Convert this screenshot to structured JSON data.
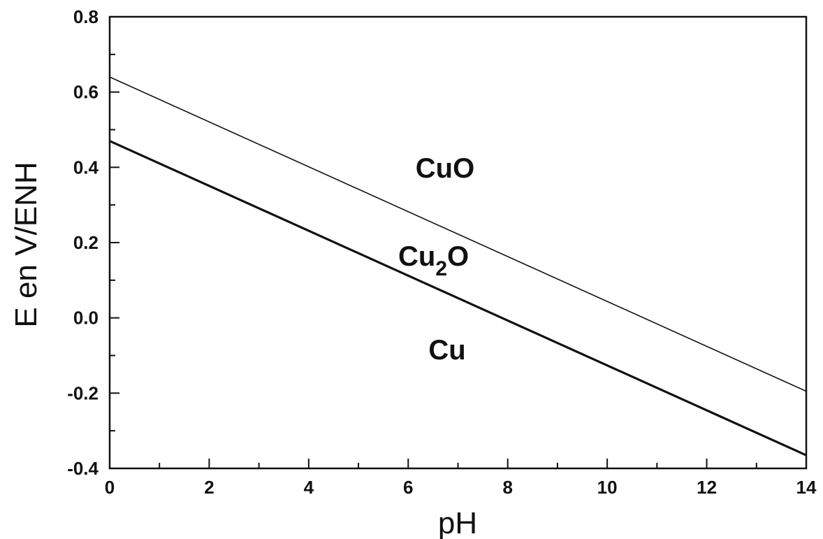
{
  "chart_data": {
    "type": "line",
    "xlabel": "pH",
    "ylabel": "E en V/ENH",
    "xlim": [
      0,
      14
    ],
    "ylim": [
      -0.4,
      0.8
    ],
    "x_ticks": [
      "0",
      "2",
      "4",
      "6",
      "8",
      "10",
      "12",
      "14"
    ],
    "y_ticks": [
      "-0.4",
      "-0.2",
      "0.0",
      "0.2",
      "0.4",
      "0.6",
      "0.8"
    ],
    "grid": false,
    "series": [
      {
        "x": [
          0,
          14
        ],
        "values": [
          0.64,
          -0.195
        ]
      },
      {
        "x": [
          0,
          14
        ],
        "values": [
          0.47,
          -0.365
        ]
      }
    ],
    "annotations": {
      "cuo": "CuO",
      "cu2o_main": "Cu",
      "cu2o_sub": "2",
      "cu2o_tail": "O",
      "cu": "Cu"
    }
  }
}
